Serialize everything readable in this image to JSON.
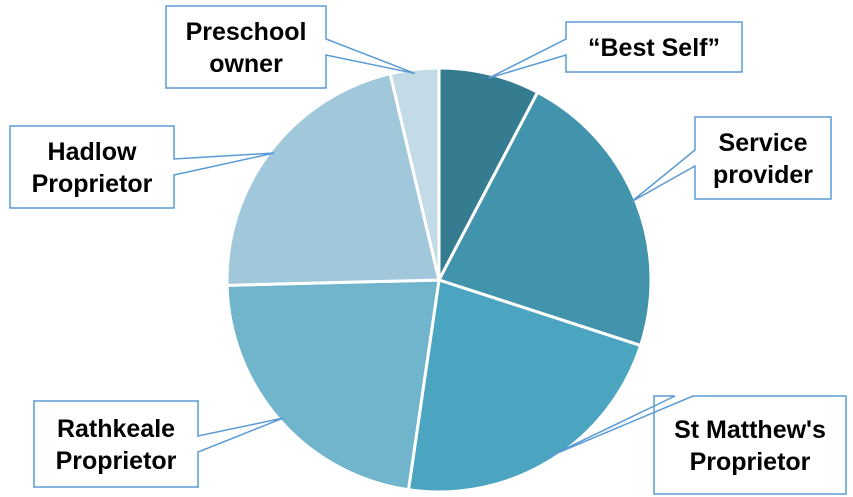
{
  "chart_data": {
    "type": "pie",
    "title": "",
    "start": "12 o'clock",
    "direction": "clockwise",
    "legend": "none (callout labels)",
    "slices": [
      {
        "label": "“Best Self”",
        "lines": [
          "“Best Self”"
        ],
        "value": 7.7,
        "color": "#357c91"
      },
      {
        "label": "Service provider",
        "lines": [
          "Service",
          "provider"
        ],
        "value": 22.3,
        "color": "#4293ac"
      },
      {
        "label": "St Matthew's Proprietor",
        "lines": [
          "St Matthew's",
          "Proprietor"
        ],
        "value": 22.3,
        "color": "#4ba5c0"
      },
      {
        "label": "Rathkeale Proprietor",
        "lines": [
          "Rathkeale",
          "Proprietor"
        ],
        "value": 22.3,
        "color": "#71b5cc"
      },
      {
        "label": "Hadlow Proprietor",
        "lines": [
          "Hadlow",
          "Proprietor"
        ],
        "value": 21.7,
        "color": "#a1c8da"
      },
      {
        "label": "Preschool owner",
        "lines": [
          "Preschool",
          "owner"
        ],
        "value": 3.7,
        "color": "#c2dbe6"
      }
    ],
    "callout_border_color": "#5b9bd5"
  }
}
